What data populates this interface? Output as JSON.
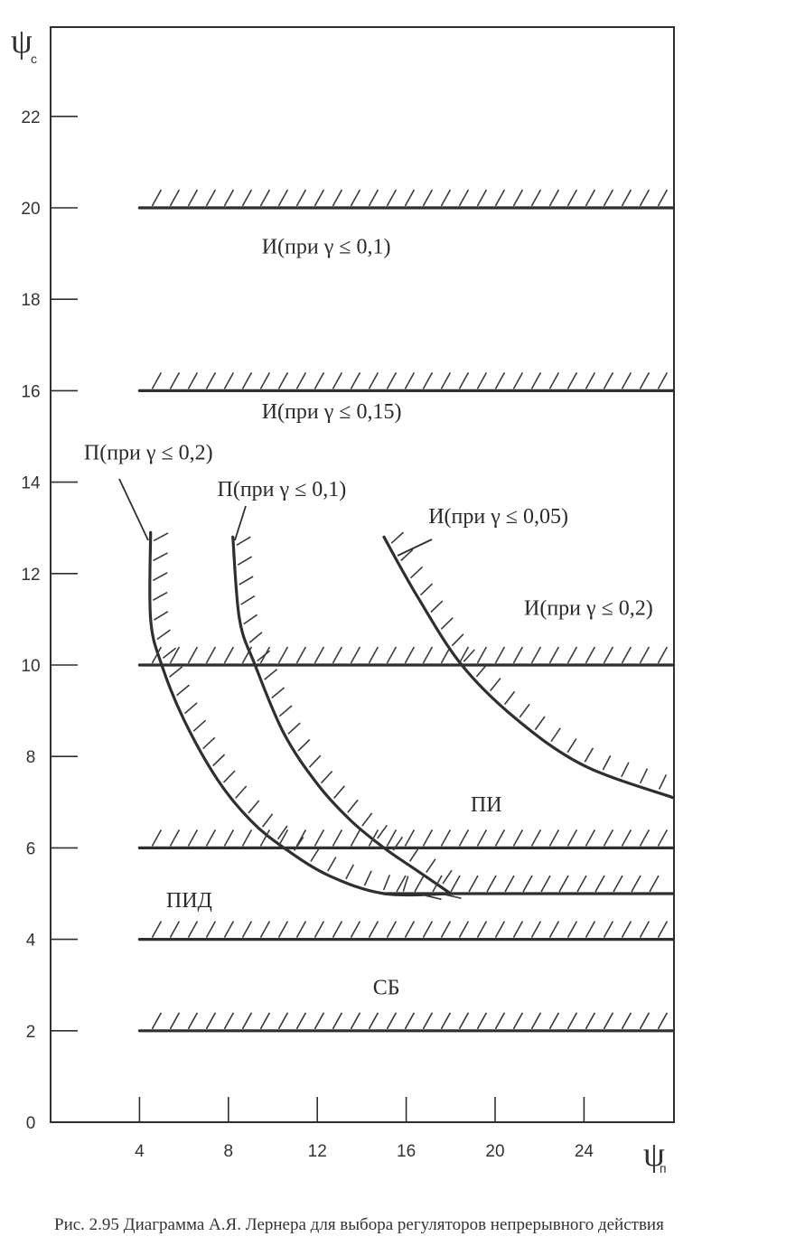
{
  "chart_data": {
    "type": "line",
    "x_axis": {
      "symbol": "ψ",
      "subscript": "п",
      "range": [
        0,
        28
      ],
      "ticks": [
        4,
        8,
        12,
        16,
        20,
        24
      ],
      "tick_labels": [
        "4",
        "8",
        "12",
        "16",
        "20",
        "24"
      ]
    },
    "y_axis": {
      "symbol": "ψ",
      "subscript": "с",
      "range": [
        0,
        24
      ],
      "ticks": [
        0,
        2,
        4,
        6,
        8,
        10,
        12,
        14,
        16,
        18,
        20,
        22
      ],
      "tick_labels": [
        "0",
        "2",
        "4",
        "6",
        "8",
        "10",
        "12",
        "14",
        "16",
        "18",
        "20",
        "22"
      ]
    },
    "grid": false,
    "boundaries": [
      {
        "id": "h20",
        "kind": "horizontal",
        "points": [
          [
            4,
            20
          ],
          [
            28,
            20
          ]
        ]
      },
      {
        "id": "h16",
        "kind": "horizontal",
        "points": [
          [
            4,
            16
          ],
          [
            28,
            16
          ]
        ]
      },
      {
        "id": "h10",
        "kind": "horizontal",
        "points": [
          [
            4,
            10
          ],
          [
            28,
            10
          ]
        ]
      },
      {
        "id": "h6",
        "kind": "horizontal",
        "points": [
          [
            4,
            6
          ],
          [
            28,
            6
          ]
        ]
      },
      {
        "id": "h5",
        "kind": "horizontal",
        "points": [
          [
            15,
            5
          ],
          [
            28,
            5
          ]
        ]
      },
      {
        "id": "h4",
        "kind": "horizontal",
        "points": [
          [
            4,
            4
          ],
          [
            28,
            4
          ]
        ]
      },
      {
        "id": "h2",
        "kind": "horizontal",
        "points": [
          [
            4,
            2
          ],
          [
            28,
            2
          ]
        ]
      },
      {
        "id": "p02",
        "kind": "curve",
        "points": [
          [
            4.5,
            12.9
          ],
          [
            4.5,
            11
          ],
          [
            5,
            10
          ],
          [
            6,
            8.8
          ],
          [
            7.5,
            7.5
          ],
          [
            9,
            6.6
          ],
          [
            10.5,
            6
          ],
          [
            12.5,
            5.4
          ],
          [
            15,
            5
          ],
          [
            18,
            5
          ]
        ]
      },
      {
        "id": "p01",
        "kind": "curve",
        "points": [
          [
            8.2,
            12.8
          ],
          [
            8.5,
            11
          ],
          [
            9.2,
            10
          ],
          [
            10.5,
            8.5
          ],
          [
            12,
            7.4
          ],
          [
            13.5,
            6.6
          ],
          [
            15,
            6
          ],
          [
            16.5,
            5.5
          ],
          [
            18,
            5
          ]
        ]
      },
      {
        "id": "i005",
        "kind": "curve",
        "points": [
          [
            15,
            12.8
          ],
          [
            16.5,
            11.5
          ],
          [
            18.5,
            10
          ],
          [
            21,
            8.8
          ],
          [
            24,
            7.8
          ],
          [
            28,
            7.1
          ]
        ]
      }
    ],
    "labels": [
      {
        "text": "И(при γ ≤ 0,1)",
        "x": 9.5,
        "y": 19
      },
      {
        "text": "И(при γ ≤ 0,15)",
        "x": 9.5,
        "y": 15.4
      },
      {
        "text": "П(при γ ≤ 0,2)",
        "x": 1.5,
        "y": 14.5
      },
      {
        "text": "П(при γ ≤ 0,1)",
        "x": 7.5,
        "y": 13.7
      },
      {
        "text": "И(при γ ≤ 0,05)",
        "x": 17,
        "y": 13.1
      },
      {
        "text": "И(при γ ≤ 0,2)",
        "x": 21.3,
        "y": 11.1
      },
      {
        "text": "ПИ",
        "x": 18.9,
        "y": 6.8
      },
      {
        "text": "ПИД",
        "x": 5.2,
        "y": 4.7
      },
      {
        "text": "СБ",
        "x": 14.5,
        "y": 2.8
      }
    ]
  },
  "caption": "Рис. 2.95  Диаграмма А.Я. Лернера для выбора регуляторов непрерывного  действия"
}
